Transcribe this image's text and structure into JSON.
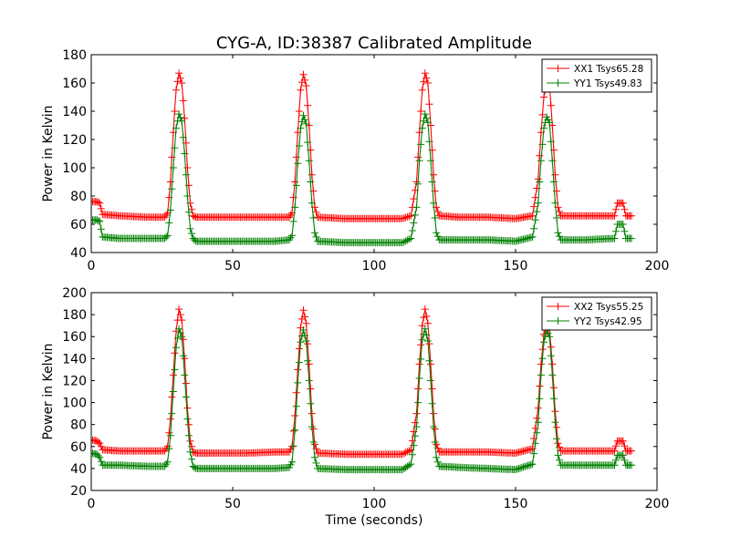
{
  "title": "CYG-A, ID:38387 Calibrated Amplitude",
  "colors": {
    "xx": "#ff0000",
    "yy": "#008000",
    "axes": "#000000",
    "background": "#ffffff"
  },
  "chart_data": [
    {
      "type": "line",
      "title": "CYG-A, ID:38387 Calibrated Amplitude",
      "xlabel": "",
      "ylabel": "Power in Kelvin",
      "xlim": [
        0,
        200
      ],
      "ylim": [
        40,
        180
      ],
      "xticks": [
        "0",
        "50",
        "100",
        "150",
        "200"
      ],
      "yticks": [
        "40",
        "60",
        "80",
        "100",
        "120",
        "140",
        "160",
        "180"
      ],
      "grid": false,
      "legend": "top-right",
      "marker": "+",
      "series": [
        {
          "name": "XX1 Tsys65.28",
          "color": "#ff0000",
          "points": [
            [
              0,
              76
            ],
            [
              2,
              76
            ],
            [
              3,
              75
            ],
            [
              4,
              67
            ],
            [
              10,
              66
            ],
            [
              20,
              65
            ],
            [
              26,
              65
            ],
            [
              27,
              68
            ],
            [
              28,
              90
            ],
            [
              29,
              125
            ],
            [
              30,
              155
            ],
            [
              31,
              167
            ],
            [
              32,
              160
            ],
            [
              33,
              135
            ],
            [
              34,
              100
            ],
            [
              35,
              75
            ],
            [
              36,
              66
            ],
            [
              37,
              65
            ],
            [
              45,
              65
            ],
            [
              55,
              65
            ],
            [
              65,
              65
            ],
            [
              70,
              65
            ],
            [
              71,
              68
            ],
            [
              72,
              90
            ],
            [
              73,
              125
            ],
            [
              74,
              155
            ],
            [
              75,
              166
            ],
            [
              76,
              158
            ],
            [
              77,
              130
            ],
            [
              78,
              95
            ],
            [
              79,
              72
            ],
            [
              80,
              65
            ],
            [
              90,
              64
            ],
            [
              100,
              64
            ],
            [
              110,
              64
            ],
            [
              113,
              66
            ],
            [
              115,
              90
            ],
            [
              116,
              125
            ],
            [
              117,
              155
            ],
            [
              118,
              167
            ],
            [
              119,
              160
            ],
            [
              120,
              130
            ],
            [
              121,
              95
            ],
            [
              122,
              72
            ],
            [
              123,
              66
            ],
            [
              130,
              65
            ],
            [
              140,
              65
            ],
            [
              150,
              64
            ],
            [
              156,
              66
            ],
            [
              158,
              92
            ],
            [
              159,
              125
            ],
            [
              160,
              150
            ],
            [
              161,
              160
            ],
            [
              162,
              158
            ],
            [
              163,
              130
            ],
            [
              164,
              95
            ],
            [
              165,
              72
            ],
            [
              166,
              66
            ],
            [
              175,
              66
            ],
            [
              185,
              66
            ],
            [
              186,
              75
            ],
            [
              188,
              75
            ],
            [
              189,
              66
            ],
            [
              191,
              66
            ]
          ]
        },
        {
          "name": "YY1 Tsys49.83",
          "color": "#008000",
          "points": [
            [
              0,
              63
            ],
            [
              2,
              63
            ],
            [
              3,
              62
            ],
            [
              4,
              51
            ],
            [
              10,
              50
            ],
            [
              20,
              50
            ],
            [
              26,
              50
            ],
            [
              27,
              52
            ],
            [
              28,
              70
            ],
            [
              29,
              100
            ],
            [
              30,
              128
            ],
            [
              31,
              138
            ],
            [
              32,
              133
            ],
            [
              33,
              110
            ],
            [
              34,
              80
            ],
            [
              35,
              57
            ],
            [
              36,
              50
            ],
            [
              37,
              48
            ],
            [
              45,
              48
            ],
            [
              55,
              48
            ],
            [
              65,
              48
            ],
            [
              70,
              49
            ],
            [
              71,
              52
            ],
            [
              72,
              72
            ],
            [
              73,
              103
            ],
            [
              74,
              128
            ],
            [
              75,
              137
            ],
            [
              76,
              131
            ],
            [
              77,
              105
            ],
            [
              78,
              75
            ],
            [
              79,
              54
            ],
            [
              80,
              48
            ],
            [
              90,
              47
            ],
            [
              100,
              47
            ],
            [
              110,
              47
            ],
            [
              113,
              50
            ],
            [
              115,
              72
            ],
            [
              116,
              105
            ],
            [
              117,
              128
            ],
            [
              118,
              138
            ],
            [
              119,
              132
            ],
            [
              120,
              105
            ],
            [
              121,
              75
            ],
            [
              122,
              54
            ],
            [
              123,
              49
            ],
            [
              130,
              49
            ],
            [
              140,
              49
            ],
            [
              150,
              48
            ],
            [
              156,
              51
            ],
            [
              158,
              75
            ],
            [
              159,
              105
            ],
            [
              160,
              128
            ],
            [
              161,
              136
            ],
            [
              162,
              132
            ],
            [
              163,
              105
            ],
            [
              164,
              75
            ],
            [
              165,
              54
            ],
            [
              166,
              49
            ],
            [
              175,
              49
            ],
            [
              185,
              50
            ],
            [
              186,
              60
            ],
            [
              188,
              60
            ],
            [
              189,
              50
            ],
            [
              191,
              50
            ]
          ]
        }
      ]
    },
    {
      "type": "line",
      "xlabel": "Time (seconds)",
      "ylabel": "Power in Kelvin",
      "xlim": [
        0,
        200
      ],
      "ylim": [
        20,
        200
      ],
      "xticks": [
        "0",
        "50",
        "100",
        "150",
        "200"
      ],
      "yticks": [
        "20",
        "40",
        "60",
        "80",
        "100",
        "120",
        "140",
        "160",
        "180",
        "200"
      ],
      "grid": false,
      "legend": "top-right",
      "marker": "+",
      "series": [
        {
          "name": "XX2 Tsys55.25",
          "color": "#ff0000",
          "points": [
            [
              0,
              66
            ],
            [
              2,
              65
            ],
            [
              3,
              63
            ],
            [
              4,
              57
            ],
            [
              10,
              56
            ],
            [
              20,
              56
            ],
            [
              26,
              56
            ],
            [
              27,
              60
            ],
            [
              28,
              85
            ],
            [
              29,
              125
            ],
            [
              30,
              165
            ],
            [
              31,
              185
            ],
            [
              32,
              175
            ],
            [
              33,
              140
            ],
            [
              34,
              95
            ],
            [
              35,
              65
            ],
            [
              36,
              55
            ],
            [
              37,
              54
            ],
            [
              45,
              54
            ],
            [
              55,
              54
            ],
            [
              65,
              55
            ],
            [
              70,
              55
            ],
            [
              71,
              60
            ],
            [
              72,
              88
            ],
            [
              73,
              130
            ],
            [
              74,
              168
            ],
            [
              75,
              184
            ],
            [
              76,
              172
            ],
            [
              77,
              135
            ],
            [
              78,
              90
            ],
            [
              79,
              62
            ],
            [
              80,
              54
            ],
            [
              90,
              53
            ],
            [
              100,
              53
            ],
            [
              110,
              53
            ],
            [
              113,
              57
            ],
            [
              115,
              90
            ],
            [
              116,
              135
            ],
            [
              117,
              170
            ],
            [
              118,
              185
            ],
            [
              119,
              172
            ],
            [
              120,
              135
            ],
            [
              121,
              90
            ],
            [
              122,
              62
            ],
            [
              123,
              55
            ],
            [
              130,
              55
            ],
            [
              140,
              55
            ],
            [
              150,
              54
            ],
            [
              156,
              58
            ],
            [
              158,
              95
            ],
            [
              159,
              135
            ],
            [
              160,
              162
            ],
            [
              161,
              170
            ],
            [
              162,
              166
            ],
            [
              163,
              135
            ],
            [
              164,
              92
            ],
            [
              165,
              63
            ],
            [
              166,
              56
            ],
            [
              175,
              56
            ],
            [
              185,
              56
            ],
            [
              186,
              65
            ],
            [
              188,
              65
            ],
            [
              189,
              56
            ],
            [
              191,
              56
            ]
          ]
        },
        {
          "name": "YY2 Tsys42.95",
          "color": "#008000",
          "points": [
            [
              0,
              54
            ],
            [
              2,
              53
            ],
            [
              3,
              50
            ],
            [
              4,
              43
            ],
            [
              10,
              43
            ],
            [
              20,
              42
            ],
            [
              26,
              42
            ],
            [
              27,
              46
            ],
            [
              28,
              70
            ],
            [
              29,
              110
            ],
            [
              30,
              150
            ],
            [
              31,
              167
            ],
            [
              32,
              160
            ],
            [
              33,
              125
            ],
            [
              34,
              85
            ],
            [
              35,
              55
            ],
            [
              36,
              42
            ],
            [
              37,
              40
            ],
            [
              45,
              40
            ],
            [
              55,
              40
            ],
            [
              65,
              40
            ],
            [
              70,
              41
            ],
            [
              71,
              46
            ],
            [
              72,
              75
            ],
            [
              73,
              118
            ],
            [
              74,
              155
            ],
            [
              75,
              166
            ],
            [
              76,
              156
            ],
            [
              77,
              120
            ],
            [
              78,
              78
            ],
            [
              79,
              50
            ],
            [
              80,
              40
            ],
            [
              90,
              39
            ],
            [
              100,
              39
            ],
            [
              110,
              39
            ],
            [
              113,
              44
            ],
            [
              115,
              78
            ],
            [
              116,
              122
            ],
            [
              117,
              157
            ],
            [
              118,
              167
            ],
            [
              119,
              156
            ],
            [
              120,
              120
            ],
            [
              121,
              78
            ],
            [
              122,
              50
            ],
            [
              123,
              42
            ],
            [
              130,
              41
            ],
            [
              140,
              40
            ],
            [
              150,
              39
            ],
            [
              156,
              44
            ],
            [
              158,
              82
            ],
            [
              159,
              125
            ],
            [
              160,
              155
            ],
            [
              161,
              166
            ],
            [
              162,
              160
            ],
            [
              163,
              125
            ],
            [
              164,
              82
            ],
            [
              165,
              52
            ],
            [
              166,
              43
            ],
            [
              175,
              43
            ],
            [
              185,
              43
            ],
            [
              186,
              52
            ],
            [
              188,
              52
            ],
            [
              189,
              43
            ],
            [
              191,
              43
            ]
          ]
        }
      ]
    }
  ]
}
